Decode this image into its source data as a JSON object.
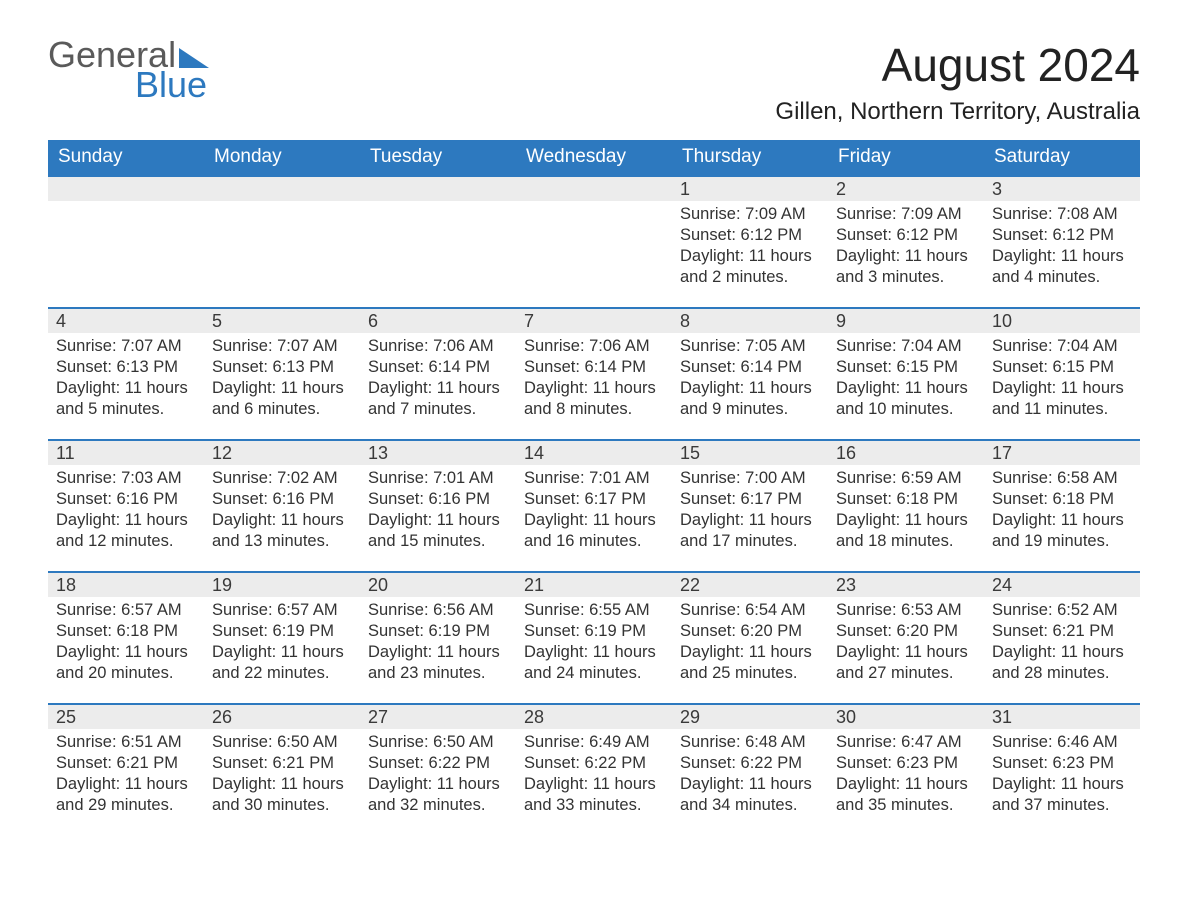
{
  "logo": {
    "line1": "General",
    "line2": "Blue"
  },
  "title": "August 2024",
  "location": "Gillen, Northern Territory, Australia",
  "colors": {
    "header_bg": "#2d79bf",
    "header_fg": "#ffffff",
    "daynum_bg": "#ececec",
    "row_border": "#2d79bf",
    "text": "#2b2b2b"
  },
  "weekdays": [
    "Sunday",
    "Monday",
    "Tuesday",
    "Wednesday",
    "Thursday",
    "Friday",
    "Saturday"
  ],
  "weeks": [
    [
      null,
      null,
      null,
      null,
      {
        "n": "1",
        "sr": "7:09 AM",
        "ss": "6:12 PM",
        "dl": "11 hours and 2 minutes."
      },
      {
        "n": "2",
        "sr": "7:09 AM",
        "ss": "6:12 PM",
        "dl": "11 hours and 3 minutes."
      },
      {
        "n": "3",
        "sr": "7:08 AM",
        "ss": "6:12 PM",
        "dl": "11 hours and 4 minutes."
      }
    ],
    [
      {
        "n": "4",
        "sr": "7:07 AM",
        "ss": "6:13 PM",
        "dl": "11 hours and 5 minutes."
      },
      {
        "n": "5",
        "sr": "7:07 AM",
        "ss": "6:13 PM",
        "dl": "11 hours and 6 minutes."
      },
      {
        "n": "6",
        "sr": "7:06 AM",
        "ss": "6:14 PM",
        "dl": "11 hours and 7 minutes."
      },
      {
        "n": "7",
        "sr": "7:06 AM",
        "ss": "6:14 PM",
        "dl": "11 hours and 8 minutes."
      },
      {
        "n": "8",
        "sr": "7:05 AM",
        "ss": "6:14 PM",
        "dl": "11 hours and 9 minutes."
      },
      {
        "n": "9",
        "sr": "7:04 AM",
        "ss": "6:15 PM",
        "dl": "11 hours and 10 minutes."
      },
      {
        "n": "10",
        "sr": "7:04 AM",
        "ss": "6:15 PM",
        "dl": "11 hours and 11 minutes."
      }
    ],
    [
      {
        "n": "11",
        "sr": "7:03 AM",
        "ss": "6:16 PM",
        "dl": "11 hours and 12 minutes."
      },
      {
        "n": "12",
        "sr": "7:02 AM",
        "ss": "6:16 PM",
        "dl": "11 hours and 13 minutes."
      },
      {
        "n": "13",
        "sr": "7:01 AM",
        "ss": "6:16 PM",
        "dl": "11 hours and 15 minutes."
      },
      {
        "n": "14",
        "sr": "7:01 AM",
        "ss": "6:17 PM",
        "dl": "11 hours and 16 minutes."
      },
      {
        "n": "15",
        "sr": "7:00 AM",
        "ss": "6:17 PM",
        "dl": "11 hours and 17 minutes."
      },
      {
        "n": "16",
        "sr": "6:59 AM",
        "ss": "6:18 PM",
        "dl": "11 hours and 18 minutes."
      },
      {
        "n": "17",
        "sr": "6:58 AM",
        "ss": "6:18 PM",
        "dl": "11 hours and 19 minutes."
      }
    ],
    [
      {
        "n": "18",
        "sr": "6:57 AM",
        "ss": "6:18 PM",
        "dl": "11 hours and 20 minutes."
      },
      {
        "n": "19",
        "sr": "6:57 AM",
        "ss": "6:19 PM",
        "dl": "11 hours and 22 minutes."
      },
      {
        "n": "20",
        "sr": "6:56 AM",
        "ss": "6:19 PM",
        "dl": "11 hours and 23 minutes."
      },
      {
        "n": "21",
        "sr": "6:55 AM",
        "ss": "6:19 PM",
        "dl": "11 hours and 24 minutes."
      },
      {
        "n": "22",
        "sr": "6:54 AM",
        "ss": "6:20 PM",
        "dl": "11 hours and 25 minutes."
      },
      {
        "n": "23",
        "sr": "6:53 AM",
        "ss": "6:20 PM",
        "dl": "11 hours and 27 minutes."
      },
      {
        "n": "24",
        "sr": "6:52 AM",
        "ss": "6:21 PM",
        "dl": "11 hours and 28 minutes."
      }
    ],
    [
      {
        "n": "25",
        "sr": "6:51 AM",
        "ss": "6:21 PM",
        "dl": "11 hours and 29 minutes."
      },
      {
        "n": "26",
        "sr": "6:50 AM",
        "ss": "6:21 PM",
        "dl": "11 hours and 30 minutes."
      },
      {
        "n": "27",
        "sr": "6:50 AM",
        "ss": "6:22 PM",
        "dl": "11 hours and 32 minutes."
      },
      {
        "n": "28",
        "sr": "6:49 AM",
        "ss": "6:22 PM",
        "dl": "11 hours and 33 minutes."
      },
      {
        "n": "29",
        "sr": "6:48 AM",
        "ss": "6:22 PM",
        "dl": "11 hours and 34 minutes."
      },
      {
        "n": "30",
        "sr": "6:47 AM",
        "ss": "6:23 PM",
        "dl": "11 hours and 35 minutes."
      },
      {
        "n": "31",
        "sr": "6:46 AM",
        "ss": "6:23 PM",
        "dl": "11 hours and 37 minutes."
      }
    ]
  ],
  "labels": {
    "sunrise": "Sunrise: ",
    "sunset": "Sunset: ",
    "daylight": "Daylight: "
  }
}
